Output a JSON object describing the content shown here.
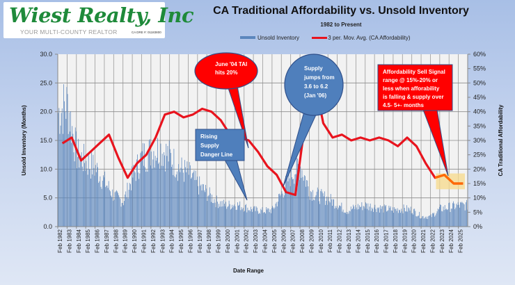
{
  "logo": {
    "name": "Wiest Realty, Inc",
    "tagline": "YOUR MULTI-COUNTY REALTOR",
    "license": "CA DRE #: 01183800"
  },
  "colors": {
    "inventory_bar": "#5b86bd",
    "affordability_line": "#e8141e",
    "callout_red": "#ff0000",
    "callout_blue": "#4f7fbc",
    "highlight_band": "#f7d98a"
  },
  "chart_data": {
    "type": "bar+line",
    "title": "CA Traditional Affordability vs. Unsold Inventory",
    "subtitle": "1982  to Present",
    "xlabel": "Date Range",
    "ylabel_left": "Unsold Inventory (Months)",
    "ylabel_right": "CA Traditional  Affordability",
    "ylim_left": [
      0,
      30
    ],
    "ylim_right": [
      0,
      60
    ],
    "yticks_left": [
      "0.0",
      "5.0",
      "10.0",
      "15.0",
      "20.0",
      "25.0",
      "30.0"
    ],
    "yticks_right": [
      "0%",
      "5%",
      "10%",
      "15%",
      "20%",
      "25%",
      "30%",
      "35%",
      "40%",
      "45%",
      "50%",
      "55%",
      "60%"
    ],
    "grid": true,
    "legend_position": "top",
    "legend": [
      "Unsold Inventory",
      "3 per. Mov. Avg. (CA Affordability)"
    ],
    "categories": [
      "Feb 1982",
      "Feb 1983",
      "Feb 1984",
      "Feb 1985",
      "Feb 1986",
      "Feb 1987",
      "Feb 1988",
      "Feb 1989",
      "Feb 1990",
      "Feb 1991",
      "Feb 1992",
      "Feb 1993",
      "Feb 1994",
      "Feb 1995",
      "Feb 1996",
      "Feb 1997",
      "Feb 1998",
      "Feb 1999",
      "Feb 2000",
      "Feb 2001",
      "Feb 2002",
      "Feb 2003",
      "Feb 2004",
      "Feb 2005",
      "Feb 2006",
      "Feb 2007",
      "Feb 2008",
      "Feb 2009",
      "Feb 2010",
      "Feb 2011",
      "Feb 2012",
      "Feb 2013",
      "Feb 2014",
      "Feb 2015",
      "Feb 2016",
      "Feb 2017",
      "Feb 2018",
      "Feb 2019",
      "Feb 2020",
      "Feb 2021",
      "Feb 2022",
      "Feb 2023",
      "Feb 2024",
      "Feb 2025"
    ],
    "series": [
      {
        "name": "Unsold Inventory",
        "type": "bar",
        "axis": "left",
        "unit": "months",
        "values": [
          20.5,
          22.0,
          13.0,
          11.5,
          10.5,
          8.0,
          5.5,
          4.5,
          9.0,
          12.5,
          13.5,
          14.0,
          12.5,
          10.5,
          9.5,
          7.5,
          6.0,
          4.5,
          3.8,
          4.0,
          3.5,
          3.0,
          2.8,
          3.0,
          6.0,
          9.5,
          11.0,
          6.5,
          5.5,
          5.0,
          4.0,
          2.8,
          3.5,
          3.8,
          3.5,
          3.2,
          3.0,
          3.2,
          3.0,
          1.8,
          1.8,
          3.2,
          3.5,
          3.8
        ]
      },
      {
        "name": "3 per. Mov. Avg. (CA Affordability)",
        "type": "line",
        "axis": "right",
        "unit": "percent",
        "values": [
          29,
          31,
          23,
          26,
          29,
          32,
          24,
          17,
          22,
          25,
          31,
          39,
          40,
          38,
          39,
          41,
          40,
          37,
          32,
          31,
          30,
          26,
          21,
          18,
          12,
          11,
          35,
          52,
          36,
          31,
          32,
          30,
          31,
          30,
          31,
          30,
          28,
          31,
          28,
          22,
          17,
          18,
          15,
          15
        ]
      }
    ],
    "annotations": [
      {
        "id": "june04",
        "text": [
          "June '04 TAI",
          "hits 20%"
        ],
        "shape": "red-oval"
      },
      {
        "id": "supply",
        "text": [
          "Supply",
          "jumps from",
          "3.6 to 6.2",
          "(Jan '06)"
        ],
        "shape": "blue-oval"
      },
      {
        "id": "rising",
        "text": [
          "Rising",
          "Supply",
          "Danger Line"
        ],
        "shape": "blue-rect"
      },
      {
        "id": "sell",
        "text": [
          "Affordability  Sell Signal",
          "range @  15%-20% or",
          "less when  afforability",
          "is falling & supply over",
          "4.5- 5+- months"
        ],
        "shape": "red-rect"
      }
    ]
  }
}
